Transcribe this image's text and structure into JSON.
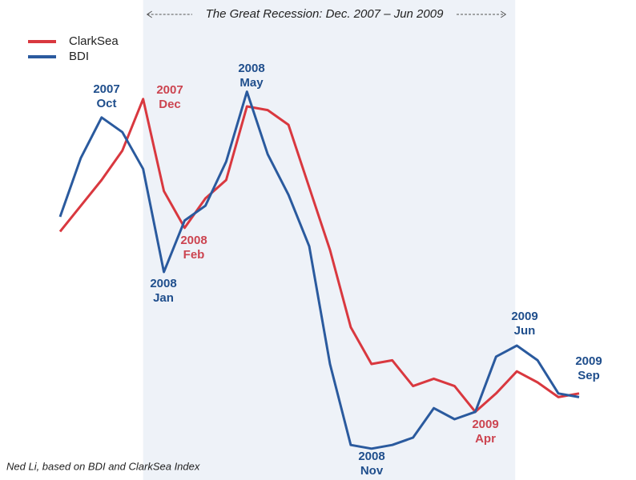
{
  "chart_data": {
    "type": "line",
    "title": "The Great Recession: Dec. 2007 – Jun 2009",
    "footnote": "Ned Li, based on BDI and ClarkSea Index",
    "ylim": [
      0,
      100
    ],
    "shade": {
      "from": 4,
      "to": 22,
      "color": "#eef2f8"
    },
    "series": [
      {
        "name": "ClarkSea",
        "color": "#d9383f",
        "values": [
          61,
          68,
          75,
          83,
          97,
          72,
          62,
          70,
          75,
          95,
          94,
          90,
          73,
          56,
          35,
          25,
          26,
          19,
          21,
          19,
          12,
          17,
          23,
          20,
          16,
          17
        ]
      },
      {
        "name": "BDI",
        "color": "#2a5a9e",
        "values": [
          65,
          81,
          92,
          88,
          78,
          50,
          64,
          68,
          80,
          99,
          82,
          71,
          57,
          25,
          3,
          2,
          3,
          5,
          13,
          10,
          12,
          27,
          30,
          26,
          17,
          16
        ]
      }
    ],
    "annotations": [
      {
        "series": 1,
        "lines": [
          "2007",
          "Oct"
        ]
      },
      {
        "series": 0,
        "lines": [
          "2007",
          "Dec"
        ]
      },
      {
        "series": 1,
        "lines": [
          "2008",
          "Jan"
        ]
      },
      {
        "series": 0,
        "lines": [
          "2008",
          "Feb"
        ]
      },
      {
        "series": 1,
        "lines": [
          "2008",
          "May"
        ]
      },
      {
        "series": 1,
        "lines": [
          "2008",
          "Nov"
        ]
      },
      {
        "series": 0,
        "lines": [
          "2009",
          "Apr"
        ]
      },
      {
        "series": 1,
        "lines": [
          "2009",
          "Jun"
        ]
      },
      {
        "series": 1,
        "lines": [
          "2009",
          "Sep"
        ]
      }
    ]
  }
}
